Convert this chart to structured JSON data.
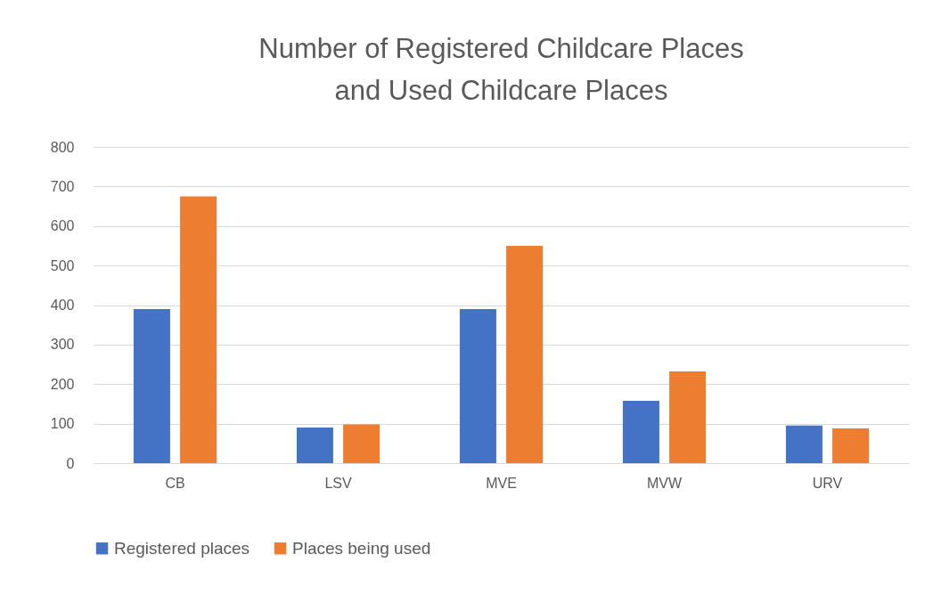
{
  "chart_data": {
    "type": "bar",
    "title": "Number of Registered Childcare Places and Used Childcare Places",
    "categories": [
      "CB",
      "LSV",
      "MVE",
      "MVW",
      "URV"
    ],
    "series": [
      {
        "name": "Registered places",
        "color": "#4472c4",
        "values": [
          390,
          90,
          390,
          158,
          95
        ]
      },
      {
        "name": "Places being used",
        "color": "#ed7d31",
        "values": [
          675,
          98,
          550,
          232,
          88
        ]
      }
    ],
    "ylim": [
      0,
      800
    ],
    "yticks": [
      0,
      100,
      200,
      300,
      400,
      500,
      600,
      700,
      800
    ],
    "grid": "y",
    "legend": "bottom"
  }
}
